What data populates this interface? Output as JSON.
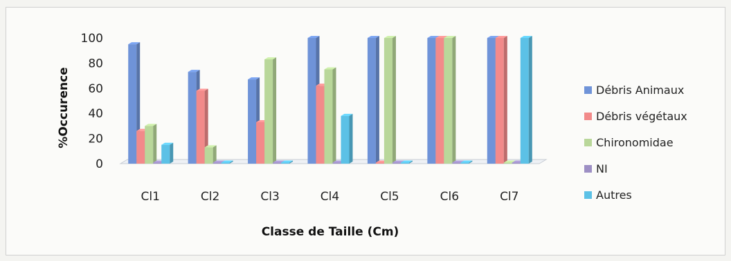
{
  "chart_data": {
    "type": "bar",
    "title": "",
    "xlabel": "Classe de Taille (Cm)",
    "ylabel": "%Occurence",
    "ylim": [
      0,
      100
    ],
    "yticks": [
      "0",
      "20",
      "40",
      "60",
      "80",
      "100"
    ],
    "grid": false,
    "legend_position": "right",
    "categories": [
      "Cl1",
      "Cl2",
      "Cl3",
      "Cl4",
      "Cl5",
      "Cl6",
      "Cl7"
    ],
    "series": [
      {
        "name": "Débris Animaux",
        "color": "#6f93d8",
        "values": [
          95,
          73,
          67,
          100,
          100,
          100,
          100
        ]
      },
      {
        "name": "Débris végétaux",
        "color": "#f28a8a",
        "values": [
          26,
          58,
          33,
          62,
          0,
          100,
          100
        ]
      },
      {
        "name": "Chironomidae",
        "color": "#b9d79a",
        "values": [
          30,
          13,
          83,
          75,
          100,
          100,
          0
        ]
      },
      {
        "name": "NI",
        "color": "#9d8fc4",
        "values": [
          0,
          0,
          0,
          0,
          0,
          0,
          0
        ]
      },
      {
        "name": "Autres",
        "color": "#5cc1e6",
        "values": [
          15,
          0,
          0,
          38,
          0,
          0,
          100
        ]
      }
    ]
  }
}
